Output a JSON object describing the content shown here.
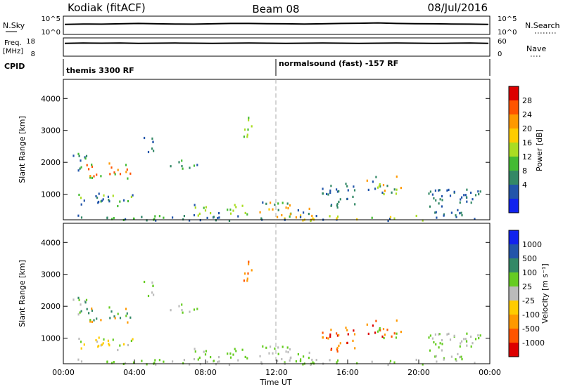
{
  "header": {
    "station": "Kodiak (fitACF)",
    "beam": "Beam 08",
    "date": "08/Jul/2016"
  },
  "status_panels": {
    "nsky": {
      "label": "N.Sky",
      "ticks": [
        "10^5",
        "10^0"
      ],
      "right_label": "N.Search",
      "right_ticks": [
        "10^5",
        "10^0"
      ],
      "values": [
        0.55,
        0.57,
        0.56,
        0.58,
        0.6,
        0.58,
        0.57,
        0.56,
        0.58,
        0.6,
        0.6,
        0.59,
        0.58,
        0.57,
        0.58,
        0.6,
        0.61,
        0.63,
        0.6,
        0.59,
        0.58,
        0.57,
        0.56,
        0.55
      ]
    },
    "freq": {
      "label_line1": "Freq.",
      "label_line2": "[MHz]",
      "ticks": [
        "18",
        "8"
      ],
      "right_label": "Nave",
      "right_ticks": [
        "60",
        "0"
      ],
      "values": [
        0.7,
        0.72,
        0.71,
        0.72,
        0.7,
        0.71,
        0.72,
        0.71,
        0.7,
        0.71,
        0.72,
        0.71,
        0.7,
        0.71,
        0.72,
        0.71,
        0.7,
        0.71,
        0.72,
        0.71,
        0.7,
        0.71,
        0.72,
        0.7
      ]
    },
    "cpid": {
      "label": "CPID",
      "modes": [
        {
          "text": "themis 3300 RF",
          "start_hour": 0
        },
        {
          "text": "normalsound (fast) -157 RF",
          "start_hour": 12
        }
      ]
    }
  },
  "chart_data": [
    {
      "type": "heatmap",
      "name": "power",
      "ylabel": "Slant Range [km]",
      "ylim": [
        200,
        4600
      ],
      "yticks": [
        1000,
        2000,
        3000,
        4000
      ],
      "xlim": [
        0,
        24
      ],
      "colorbar": {
        "label": "Power [dB]",
        "ticks": [
          "28",
          "24",
          "20",
          "16",
          "12",
          "8",
          "4"
        ],
        "colors": [
          "#dd0000",
          "#ff5500",
          "#ff9900",
          "#ffcc00",
          "#aadd22",
          "#44bb33",
          "#338866",
          "#2255aa",
          "#1122ee"
        ]
      },
      "clusters": [
        {
          "t": [
            0.3,
            11.5
          ],
          "r": [
            200,
            380
          ],
          "level": [
            5,
            6,
            7
          ]
        },
        {
          "t": [
            0.6,
            4.0
          ],
          "r": [
            650,
            1050
          ],
          "level": [
            4,
            5,
            6,
            7
          ]
        },
        {
          "t": [
            1.2,
            3.8
          ],
          "r": [
            1500,
            2000
          ],
          "level": [
            1,
            2,
            3,
            5
          ]
        },
        {
          "t": [
            0.5,
            1.5
          ],
          "r": [
            1700,
            2300
          ],
          "level": [
            5,
            6,
            7
          ]
        },
        {
          "t": [
            6.0,
            7.5
          ],
          "r": [
            1800,
            2100
          ],
          "level": [
            6,
            7,
            5
          ]
        },
        {
          "t": [
            4.5,
            5.2
          ],
          "r": [
            2200,
            2800
          ],
          "level": [
            7,
            6
          ]
        },
        {
          "t": [
            7.3,
            10.5
          ],
          "r": [
            350,
            700
          ],
          "level": [
            4,
            5,
            7
          ]
        },
        {
          "t": [
            12.0,
            20.5
          ],
          "r": [
            200,
            380
          ],
          "level": [
            2,
            3,
            4,
            5,
            7
          ]
        },
        {
          "t": [
            11.0,
            14.0
          ],
          "r": [
            300,
            780
          ],
          "level": [
            2,
            3,
            5,
            6,
            7
          ]
        },
        {
          "t": [
            14.5,
            16.5
          ],
          "r": [
            600,
            1400
          ],
          "level": [
            6,
            7
          ]
        },
        {
          "t": [
            17.0,
            19.0
          ],
          "r": [
            1000,
            1600
          ],
          "level": [
            2,
            6,
            7,
            4
          ]
        },
        {
          "t": [
            9.9,
            10.6
          ],
          "r": [
            2800,
            3500
          ],
          "level": [
            3,
            4,
            5
          ]
        },
        {
          "t": [
            20.5,
            23.5
          ],
          "r": [
            250,
            1200
          ],
          "level": [
            7,
            6
          ]
        }
      ]
    },
    {
      "type": "heatmap",
      "name": "velocity",
      "ylabel": "Slant Range [km]",
      "ylim": [
        200,
        4600
      ],
      "yticks": [
        1000,
        2000,
        3000,
        4000
      ],
      "xlim": [
        0,
        24
      ],
      "xticks": [
        "00:00",
        "04:00",
        "08:00",
        "12:00",
        "16:00",
        "20:00",
        "00:00"
      ],
      "xlabel": "Time UT",
      "colorbar": {
        "label": "Velocity [m s⁻¹]",
        "ticks": [
          "1000",
          "500",
          "100",
          "25",
          "-25",
          "-100",
          "-500",
          "-1000"
        ],
        "colors": [
          "#1122ee",
          "#2255aa",
          "#338866",
          "#66cc22",
          "#bbbbbb",
          "#ffcc00",
          "#ff9900",
          "#ff5500",
          "#dd0000"
        ]
      },
      "clusters": [
        {
          "t": [
            0.3,
            11.5
          ],
          "r": [
            200,
            380
          ],
          "level": [
            3,
            4
          ]
        },
        {
          "t": [
            0.6,
            4.0
          ],
          "r": [
            650,
            1050
          ],
          "level": [
            3,
            4,
            5
          ]
        },
        {
          "t": [
            1.2,
            3.8
          ],
          "r": [
            1500,
            2000
          ],
          "level": [
            2,
            3,
            4,
            6
          ]
        },
        {
          "t": [
            0.5,
            1.5
          ],
          "r": [
            1700,
            2300
          ],
          "level": [
            2,
            3,
            4
          ]
        },
        {
          "t": [
            6.0,
            7.5
          ],
          "r": [
            1800,
            2100
          ],
          "level": [
            4,
            3
          ]
        },
        {
          "t": [
            4.5,
            5.2
          ],
          "r": [
            2200,
            2800
          ],
          "level": [
            3,
            4
          ]
        },
        {
          "t": [
            7.3,
            10.5
          ],
          "r": [
            350,
            700
          ],
          "level": [
            3,
            4
          ]
        },
        {
          "t": [
            12.0,
            20.5
          ],
          "r": [
            200,
            380
          ],
          "level": [
            3,
            4
          ]
        },
        {
          "t": [
            11.0,
            14.0
          ],
          "r": [
            300,
            780
          ],
          "level": [
            4,
            3
          ]
        },
        {
          "t": [
            14.5,
            16.5
          ],
          "r": [
            600,
            1400
          ],
          "level": [
            6,
            7,
            8
          ]
        },
        {
          "t": [
            17.0,
            19.0
          ],
          "r": [
            1000,
            1600
          ],
          "level": [
            6,
            7,
            8,
            3
          ]
        },
        {
          "t": [
            9.9,
            10.6
          ],
          "r": [
            2800,
            3500
          ],
          "level": [
            4,
            6,
            7
          ]
        },
        {
          "t": [
            20.5,
            23.5
          ],
          "r": [
            250,
            1200
          ],
          "level": [
            4,
            3
          ]
        }
      ]
    }
  ]
}
